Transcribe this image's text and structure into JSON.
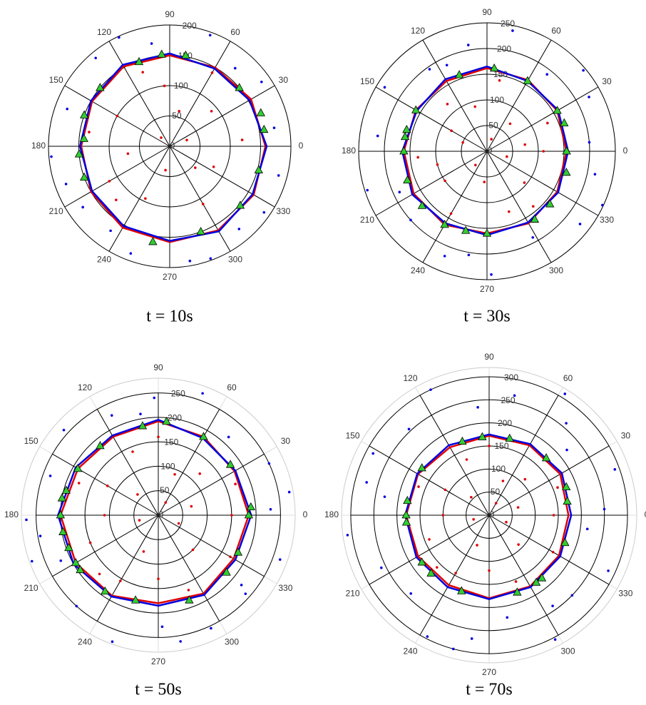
{
  "chart_data": [
    {
      "type": "polar",
      "caption": "t = 10s",
      "rlim": [
        0,
        200
      ],
      "rticks": [
        0,
        50,
        100,
        150,
        200
      ],
      "thetaticks": [
        0,
        30,
        60,
        90,
        120,
        150,
        180,
        210,
        240,
        270,
        300,
        330
      ],
      "curves": [
        {
          "color": "#e00000",
          "theta": [
            0,
            30,
            60,
            90,
            120,
            150,
            180,
            210,
            240,
            270,
            300,
            330
          ],
          "r": [
            158,
            155,
            150,
            150,
            152,
            148,
            146,
            150,
            155,
            158,
            160,
            160
          ]
        },
        {
          "color": "#0000e0",
          "theta": [
            0,
            30,
            60,
            90,
            120,
            150,
            180,
            210,
            240,
            270,
            300,
            330
          ],
          "r": [
            160,
            152,
            148,
            153,
            155,
            150,
            148,
            148,
            152,
            156,
            162,
            158
          ]
        }
      ],
      "points": [
        {
          "color": "#e00000",
          "theta": [
            5,
            40,
            75,
            110,
            150,
            190,
            225,
            260,
            300,
            335,
            20,
            95,
            170,
            245,
            320,
            60,
            135,
            210
          ],
          "r": [
            120,
            90,
            60,
            130,
            100,
            70,
            125,
            40,
            110,
            80,
            30,
            100,
            135,
            95,
            55,
            140,
            20,
            115
          ]
        },
        {
          "color": "#0000e0",
          "theta": [
            10,
            35,
            70,
            100,
            130,
            160,
            185,
            215,
            250,
            280,
            310,
            345,
            50,
            115,
            200,
            235,
            290,
            325
          ],
          "r": [
            175,
            185,
            195,
            172,
            190,
            180,
            196,
            175,
            188,
            192,
            178,
            186,
            168,
            198,
            182,
            170,
            197,
            190
          ]
        }
      ],
      "markers": {
        "color": "#33cc33",
        "theta": [
          10,
          20,
          40,
          80,
          95,
          110,
          140,
          160,
          175,
          185,
          200,
          260,
          290,
          320,
          345
        ],
        "r": [
          158,
          160,
          150,
          152,
          152,
          148,
          150,
          150,
          142,
          150,
          150,
          160,
          150,
          152,
          152
        ]
      }
    },
    {
      "type": "polar",
      "caption": "t = 30s",
      "rlim": [
        0,
        250
      ],
      "rticks": [
        0,
        50,
        100,
        150,
        200,
        250
      ],
      "thetaticks": [
        0,
        30,
        60,
        90,
        120,
        150,
        180,
        210,
        240,
        270,
        300,
        330
      ],
      "curves": [
        {
          "color": "#e00000",
          "theta": [
            0,
            30,
            60,
            90,
            120,
            150,
            180,
            210,
            240,
            270,
            300,
            330
          ],
          "r": [
            155,
            158,
            160,
            162,
            158,
            160,
            162,
            165,
            165,
            160,
            162,
            158
          ]
        },
        {
          "color": "#0000e0",
          "theta": [
            0,
            30,
            60,
            90,
            120,
            150,
            180,
            210,
            240,
            270,
            300,
            330
          ],
          "r": [
            158,
            160,
            158,
            165,
            162,
            158,
            165,
            168,
            162,
            163,
            160,
            160
          ]
        }
      ],
      "points": [
        {
          "color": "#e00000",
          "theta": [
            0,
            25,
            50,
            80,
            105,
            130,
            160,
            185,
            215,
            240,
            265,
            290,
            320,
            345,
            70,
            150,
            230,
            310,
            10,
            195
          ],
          "r": [
            110,
            130,
            70,
            140,
            90,
            120,
            50,
            135,
            100,
            140,
            60,
            125,
            95,
            40,
            25,
            80,
            35,
            140,
            75,
            100
          ]
        },
        {
          "color": "#0000e0",
          "theta": [
            5,
            28,
            52,
            78,
            100,
            125,
            148,
            172,
            198,
            222,
            248,
            272,
            298,
            322,
            348,
            40,
            115,
            205,
            260,
            335
          ],
          "r": [
            200,
            225,
            190,
            240,
            210,
            195,
            235,
            215,
            245,
            200,
            220,
            240,
            190,
            230,
            215,
            245,
            185,
            188,
            205,
            248
          ]
        }
      ],
      "markers": {
        "color": "#33cc33",
        "theta": [
          0,
          20,
          30,
          60,
          85,
          110,
          150,
          165,
          170,
          180,
          200,
          220,
          240,
          255,
          270,
          305,
          320,
          345
        ],
        "r": [
          155,
          160,
          158,
          158,
          162,
          158,
          160,
          162,
          162,
          162,
          165,
          165,
          165,
          160,
          160,
          162,
          160,
          160
        ]
      }
    },
    {
      "type": "polar",
      "caption": "t = 50s",
      "rlim": [
        0,
        280
      ],
      "rticks": [
        0,
        50,
        100,
        150,
        200,
        250
      ],
      "thetaticks": [
        0,
        30,
        60,
        90,
        120,
        150,
        180,
        210,
        240,
        270,
        300,
        330
      ],
      "curves": [
        {
          "color": "#e00000",
          "theta": [
            0,
            30,
            60,
            90,
            120,
            150,
            180,
            210,
            240,
            270,
            300,
            330
          ],
          "r": [
            185,
            180,
            185,
            192,
            185,
            190,
            200,
            195,
            190,
            180,
            185,
            178
          ]
        },
        {
          "color": "#0000e0",
          "theta": [
            0,
            30,
            60,
            90,
            120,
            150,
            180,
            210,
            240,
            270,
            300,
            330
          ],
          "r": [
            190,
            182,
            182,
            195,
            188,
            195,
            205,
            200,
            192,
            185,
            188,
            182
          ]
        }
      ],
      "points": [
        {
          "color": "#e00000",
          "theta": [
            0,
            22,
            45,
            68,
            90,
            112,
            135,
            158,
            180,
            202,
            225,
            248,
            270,
            292,
            315,
            338,
            60,
            150,
            240,
            330,
            15,
            195
          ],
          "r": [
            150,
            170,
            120,
            90,
            160,
            140,
            60,
            175,
            110,
            150,
            170,
            80,
            130,
            165,
            100,
            45,
            30,
            120,
            155,
            170,
            70,
            40
          ]
        },
        {
          "color": "#0000e0",
          "theta": [
            3,
            25,
            48,
            70,
            92,
            115,
            138,
            160,
            182,
            205,
            228,
            250,
            272,
            295,
            318,
            340,
            10,
            100,
            190,
            280,
            200,
            320
          ],
          "r": [
            230,
            250,
            215,
            265,
            240,
            225,
            260,
            235,
            270,
            220,
            250,
            275,
            228,
            255,
            240,
            265,
            272,
            210,
            245,
            262,
            275,
            222
          ]
        }
      ],
      "markers": {
        "color": "#33cc33",
        "theta": [
          0,
          5,
          35,
          60,
          85,
          100,
          130,
          150,
          165,
          170,
          180,
          190,
          200,
          210,
          215,
          235,
          255,
          290,
          320,
          335
        ],
        "r": [
          185,
          190,
          180,
          185,
          192,
          185,
          185,
          190,
          195,
          200,
          200,
          198,
          195,
          195,
          195,
          190,
          180,
          185,
          182,
          180
        ]
      }
    },
    {
      "type": "polar",
      "caption": "t = 70s",
      "rlim": [
        0,
        320
      ],
      "rticks": [
        0,
        50,
        100,
        150,
        200,
        250,
        300
      ],
      "thetaticks": [
        0,
        30,
        60,
        90,
        120,
        150,
        180,
        210,
        240,
        270,
        300,
        330
      ],
      "curves": [
        {
          "color": "#e00000",
          "theta": [
            0,
            30,
            60,
            90,
            120,
            150,
            180,
            210,
            240,
            270,
            300,
            330
          ],
          "r": [
            172,
            178,
            175,
            172,
            170,
            178,
            180,
            178,
            175,
            180,
            178,
            175
          ]
        },
        {
          "color": "#0000e0",
          "theta": [
            0,
            30,
            60,
            90,
            120,
            150,
            180,
            210,
            240,
            270,
            300,
            330
          ],
          "r": [
            178,
            182,
            178,
            175,
            175,
            180,
            182,
            182,
            180,
            182,
            180,
            178
          ]
        }
      ],
      "points": [
        {
          "color": "#e00000",
          "theta": [
            0,
            22,
            45,
            68,
            90,
            112,
            135,
            158,
            180,
            202,
            225,
            248,
            270,
            292,
            315,
            338,
            60,
            150,
            240,
            330,
            15,
            195
          ],
          "r": [
            140,
            160,
            110,
            80,
            150,
            130,
            55,
            165,
            100,
            140,
            160,
            70,
            120,
            155,
            90,
            40,
            30,
            110,
            145,
            160,
            65,
            35
          ]
        },
        {
          "color": "#0000e0",
          "theta": [
            3,
            20,
            40,
            58,
            78,
            96,
            115,
            133,
            152,
            170,
            188,
            206,
            225,
            243,
            262,
            280,
            298,
            316,
            335,
            352,
            50,
            165,
            255,
            305
          ],
          "r": [
            250,
            290,
            220,
            310,
            265,
            235,
            300,
            255,
            285,
            230,
            310,
            260,
            240,
            295,
            270,
            225,
            305,
            250,
            285,
            215,
            260,
            275,
            300,
            240
          ]
        }
      ],
      "markers": {
        "color": "#33cc33",
        "theta": [
          10,
          20,
          45,
          75,
          95,
          110,
          145,
          170,
          180,
          185,
          215,
          225,
          250,
          290,
          305,
          310,
          340
        ],
        "r": [
          172,
          178,
          175,
          172,
          170,
          170,
          178,
          180,
          180,
          180,
          178,
          178,
          175,
          178,
          178,
          178,
          175
        ]
      }
    }
  ]
}
